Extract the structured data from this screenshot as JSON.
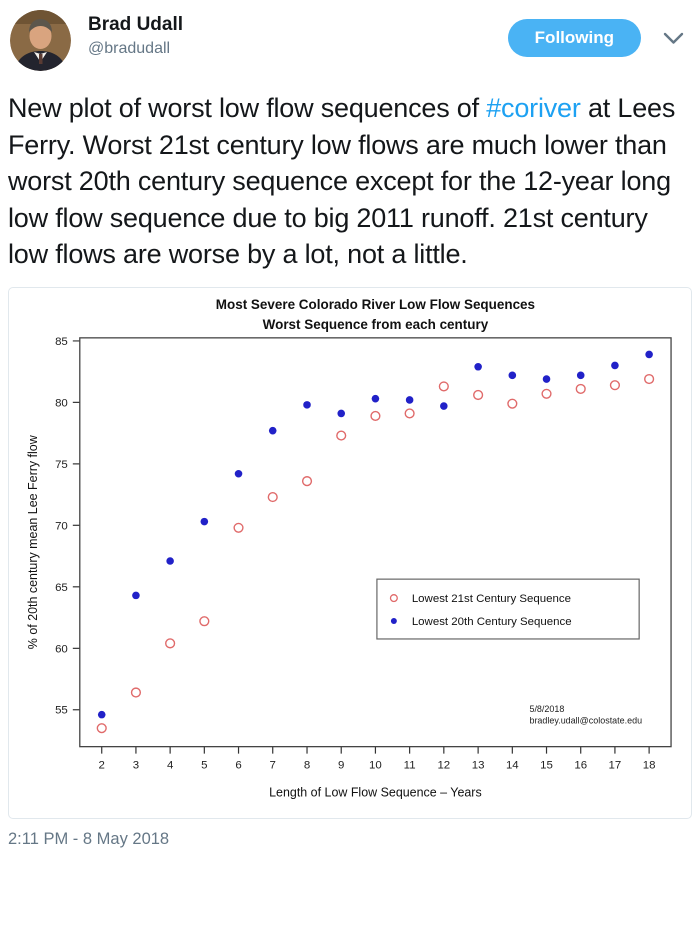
{
  "header": {
    "display_name": "Brad Udall",
    "handle": "@bradudall",
    "follow_button_label": "Following"
  },
  "icons": {
    "tweet_menu": "chevron-down-icon"
  },
  "tweet": {
    "text_before_hashtag": "New plot of worst low flow sequences of ",
    "hashtag": "#coriver",
    "text_after_hashtag": " at Lees Ferry. Worst 21st century low flows are much lower than worst 20th century sequence except for the 12-year long low flow sequence due to big 2011 runoff. 21st century low flows are worse by a lot, not a little.",
    "timestamp": "2:11 PM - 8 May 2018"
  },
  "colors": {
    "link_blue": "#1DA1F2",
    "follow_button_bg": "#4AB3F4",
    "text_primary": "#14171A",
    "text_secondary": "#657786",
    "card_border": "#E1E8ED",
    "series_21st_red": "#E06A6A",
    "series_20th_blue": "#2121C8"
  },
  "chart_data": {
    "type": "scatter",
    "title": "Most Severe Colorado River Low Flow Sequences",
    "subtitle": "Worst Sequence from each century",
    "xlabel": "Length of Low Flow Sequence – Years",
    "ylabel": "% of 20th century mean Lee Ferry flow",
    "x": [
      2,
      3,
      4,
      5,
      6,
      7,
      8,
      9,
      10,
      11,
      12,
      13,
      14,
      15,
      16,
      17,
      18
    ],
    "series": [
      {
        "name": "Lowest 21st Century Sequence",
        "marker": "open-circle",
        "color": "#E06A6A",
        "values": [
          53.5,
          56.4,
          60.4,
          62.2,
          69.8,
          72.3,
          73.6,
          77.3,
          78.9,
          79.1,
          81.3,
          80.6,
          79.9,
          80.7,
          81.1,
          81.4,
          81.9
        ]
      },
      {
        "name": "Lowest 20th Century Sequence",
        "marker": "filled-circle",
        "color": "#2121C8",
        "values": [
          54.6,
          64.3,
          67.1,
          70.3,
          74.2,
          77.7,
          79.8,
          79.1,
          80.3,
          80.2,
          79.7,
          82.9,
          82.2,
          81.9,
          82.2,
          83.0,
          83.9
        ]
      }
    ],
    "xlim": [
      1.36,
      18.64
    ],
    "ylim": [
      52.0,
      85.25
    ],
    "xticks": [
      2,
      3,
      4,
      5,
      6,
      7,
      8,
      9,
      10,
      11,
      12,
      13,
      14,
      15,
      16,
      17,
      18
    ],
    "yticks": [
      55,
      60,
      65,
      70,
      75,
      80,
      85
    ],
    "grid": false,
    "legend_position": "inside-right-middle",
    "annotation": [
      "5/8/2018",
      "bradley.udall@colostate.edu"
    ]
  }
}
